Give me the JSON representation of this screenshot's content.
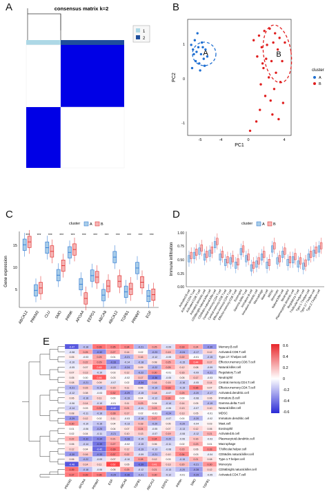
{
  "panels": {
    "a": {
      "letter": "A",
      "title": "consensus matrix k=2",
      "legend": [
        "1",
        "2"
      ],
      "colors": {
        "c1": "#add8e6",
        "c2": "#1f4e9c",
        "dark": "#0000e6"
      }
    },
    "b": {
      "letter": "B",
      "xlabel": "PC1",
      "ylabel": "PC2",
      "legend_title": "cluster",
      "legend": [
        "A",
        "B"
      ],
      "xticks": [
        "-5",
        "-4",
        "0",
        "4"
      ],
      "yticks": [
        "1",
        "0",
        "-1"
      ],
      "ellipse_labels": [
        "A",
        "B"
      ],
      "colors": {
        "A": "#1f6fd1",
        "B": "#e01e1e"
      }
    },
    "c": {
      "letter": "C",
      "legend_title": "cluster",
      "legend": [
        "A",
        "B"
      ],
      "ylabel": "Gene expression",
      "yticks": [
        "5",
        "10",
        "15"
      ],
      "sig": "***"
    },
    "d": {
      "letter": "D",
      "legend_title": "cluster",
      "legend": [
        "A",
        "B"
      ],
      "ylabel": "Immune infiltration",
      "yticks": [
        "0.00",
        "0.25",
        "0.50",
        "0.75",
        "1.00"
      ],
      "sig": "***"
    },
    "e": {
      "letter": "E",
      "colorbar_ticks": [
        "0.6",
        "0.4",
        "0.2",
        "0",
        "-0.2",
        "-0.4",
        "-0.6"
      ]
    }
  },
  "chart_data": [
    {
      "panel": "B",
      "type": "scatter",
      "xlabel": "PC1",
      "ylabel": "PC2",
      "xlim": [
        -5.8,
        5.8
      ],
      "ylim": [
        -1.3,
        1.2
      ],
      "series": [
        {
          "name": "A",
          "points": [
            [
              -5.2,
              0.55
            ],
            [
              -5.0,
              0.75
            ],
            [
              -4.6,
              0.6
            ],
            [
              -4.3,
              0.45
            ],
            [
              -4.9,
              0.3
            ],
            [
              -4.5,
              0.25
            ],
            [
              -4.0,
              0.35
            ],
            [
              -3.8,
              0.55
            ],
            [
              -5.3,
              0.15
            ],
            [
              -4.7,
              0.9
            ],
            [
              -4.2,
              0.7
            ],
            [
              -3.9,
              0.2
            ],
            [
              -5.1,
              0.45
            ],
            [
              -4.4,
              0.1
            ],
            [
              -3.6,
              0.4
            ],
            [
              -4.8,
              0.5
            ],
            [
              -4.1,
              0.6
            ],
            [
              -5.4,
              0.65
            ]
          ]
        },
        {
          "name": "B",
          "points": [
            [
              2.2,
              0.85
            ],
            [
              2.8,
              0.95
            ],
            [
              3.4,
              1.0
            ],
            [
              4.0,
              0.9
            ],
            [
              4.5,
              0.8
            ],
            [
              2.5,
              0.6
            ],
            [
              3.1,
              0.65
            ],
            [
              3.8,
              0.7
            ],
            [
              4.3,
              0.55
            ],
            [
              2.0,
              0.4
            ],
            [
              3.0,
              0.35
            ],
            [
              3.6,
              0.3
            ],
            [
              4.8,
              0.3
            ],
            [
              2.7,
              0.15
            ],
            [
              3.3,
              -0.05
            ],
            [
              4.1,
              0.05
            ],
            [
              2.4,
              -0.2
            ],
            [
              3.9,
              -0.3
            ],
            [
              4.6,
              -0.15
            ],
            [
              2.9,
              -0.45
            ],
            [
              3.5,
              -0.55
            ],
            [
              4.9,
              -0.6
            ],
            [
              2.3,
              -0.75
            ],
            [
              3.7,
              -0.85
            ],
            [
              1.9,
              -1.0
            ],
            [
              1.2,
              -1.2
            ],
            [
              4.4,
              -0.95
            ],
            [
              2.6,
              0.25
            ],
            [
              5.1,
              0.7
            ],
            [
              1.6,
              0.75
            ]
          ]
        }
      ]
    },
    {
      "panel": "C",
      "type": "box",
      "ylabel": "Gene expression",
      "ylim": [
        2,
        18
      ],
      "categories": [
        "ABCA12",
        "PRKM2",
        "CLU",
        "SMO",
        "PRNK",
        "APOA4",
        "EEPD1",
        "ABCA8",
        "ABCA12",
        "TGFB1",
        "PRNMT",
        "EGF"
      ],
      "series": [
        {
          "name": "A",
          "medians": [
            15.2,
            5.6,
            14.6,
            8.8,
            13.6,
            6.9,
            8.7,
            4.6,
            12.6,
            5.3,
            10.3,
            4.4
          ]
        },
        {
          "name": "B",
          "medians": [
            15.8,
            6.1,
            13.8,
            10.8,
            14.2,
            3.9,
            8.4,
            6.5,
            7.5,
            5.9,
            7.3,
            4.7
          ]
        }
      ]
    },
    {
      "panel": "D",
      "type": "box",
      "ylabel": "Immune infiltration",
      "ylim": [
        0,
        1
      ],
      "categories": [
        "Activated.B.cell",
        "Activated.CD4.T.cell",
        "Activated.CD8.T.cell",
        "Activated.dendritic.cell",
        "CD56bright.natural.killer.cell",
        "CD56dim.natural.killer.cell",
        "Central.memory.CD4.T.cell",
        "Central.memory.CD8.T.cell",
        "Effector.memory.CD4.T.cell",
        "Effector.memory.CD8.T.cell",
        "Eosinophil",
        "Gamma.delta.T.cell",
        "Immature.B.cell",
        "Immature.dendritic.cell",
        "Macrophage",
        "Mast.cell",
        "MDSC",
        "Monocyte",
        "Natural.killer.cell",
        "Neutrophil",
        "Plasmacytoid.dendritic.cell",
        "Regulatory.T.cell",
        "T.follicular.helper.cell",
        "Type.1.T.helper.cell",
        "Type.17.T.helper.cell",
        "Type.2.T.helper.cell"
      ],
      "series": [
        {
          "name": "A",
          "medians": [
            0.52,
            0.58,
            0.66,
            0.55,
            0.62,
            0.78,
            0.55,
            0.45,
            0.48,
            0.4,
            0.65,
            0.52,
            0.35,
            0.42,
            0.55,
            0.4,
            0.7,
            0.48,
            0.6,
            0.45,
            0.5,
            0.42,
            0.38,
            0.55,
            0.62,
            0.7
          ]
        },
        {
          "name": "B",
          "medians": [
            0.58,
            0.64,
            0.72,
            0.6,
            0.68,
            0.84,
            0.6,
            0.5,
            0.52,
            0.46,
            0.7,
            0.55,
            0.4,
            0.48,
            0.6,
            0.45,
            0.76,
            0.52,
            0.66,
            0.5,
            0.56,
            0.48,
            0.44,
            0.6,
            0.68,
            0.76
          ]
        }
      ]
    },
    {
      "panel": "E",
      "type": "heatmap",
      "columns": [
        "PRKM2",
        "APOA4",
        "PRNMT",
        "EGF",
        "ABCA8",
        "TGFB1",
        "ABCA12",
        "EEPD1",
        "PRNK",
        "SMO",
        "TGFB1"
      ],
      "rows": [
        "Memory.B.cell",
        "Activated.CD8.T.cell",
        "Type.17.T.helper.cell",
        "Effector.memory.CD8.T.cell",
        "Natural.killer.cell",
        "Regulatory.T.cell",
        "Neutrophil",
        "Central.memory.CD4.T.cell",
        "Effector.memory.CD4.T.cell",
        "Activated.dendritic.cell",
        "Immature.B.cell",
        "Gamma.delta.T.cell",
        "Natural.killer.cell",
        "MDSC",
        "Immature.dendritic.cell",
        "Mast.cell",
        "Eosinophil",
        "Activated.B.cell",
        "Plasmacytoid.dendritic.cell",
        "Macrophage",
        "T.follicular.helper.cell",
        "CD56dim.natural.killer.cell",
        "Type.1.T.helper.cell",
        "Monocyte",
        "CD56bright.natural.killer.cell",
        "Activated.CD4.T.cell"
      ],
      "values": [
        [
          -0.47,
          -0.18,
          0.39,
          0.35,
          0.34,
          -0.21,
          0.25,
          -0.09,
          0.33,
          0.24,
          -0.3
        ],
        [
          -0.08,
          0.25,
          -0.32,
          0.27,
          0.14,
          0.02,
          -0.23,
          0.19,
          -0.24,
          -0.17,
          0.12
        ],
        [
          0.05,
          -0.03,
          0.25,
          0.01,
          -0.21,
          0.16,
          -0.12,
          -0.05,
          0.22,
          -0.01,
          -0.15
        ],
        [
          -0.1,
          0.22,
          0.29,
          -0.33,
          -0.14,
          -0.18,
          0.08,
          0.25,
          -0.15,
          0.44,
          0.17
        ],
        [
          -0.05,
          0.07,
          0.45,
          -0.22,
          -0.24,
          0.09,
          -0.22,
          0.25,
          0.12,
          0.08,
          -0.09
        ],
        [
          0.07,
          0.13,
          -0.1,
          0.03,
          0.12,
          -0.22,
          0.3,
          -0.01,
          0.16,
          -0.09,
          -0.21
        ],
        [
          0.05,
          0.0,
          0.46,
          0.03,
          -0.02,
          0.17,
          -0.36,
          -0.05,
          0.05,
          0.17,
          -0.03
        ],
        [
          0.08,
          -0.21,
          0.09,
          -0.07,
          0.02,
          -0.34,
          0.16,
          0.15,
          -0.16,
          -0.05,
          0.14
        ],
        [
          -0.21,
          0.15,
          -0.19,
          0.15,
          0.11,
          0.06,
          -0.19,
          0.33,
          -0.15,
          0.36,
          0.07
        ],
        [
          -0.12,
          0.08,
          -0.03,
          0.32,
          -0.29,
          -0.15,
          0.18,
          -0.07,
          0.25,
          -0.2,
          -0.17
        ],
        [
          0.06,
          -0.16,
          0.11,
          0.0,
          -0.19,
          0.04,
          -0.12,
          0.3,
          0.0,
          -0.08,
          0.06
        ],
        [
          -0.06,
          0.14,
          -0.1,
          -0.01,
          0.11,
          0.23,
          0.04,
          -0.14,
          0.14,
          0.05,
          -0.19
        ],
        [
          -0.14,
          0.03,
          0.33,
          -0.42,
          0.21,
          -0.11,
          0.23,
          -0.06,
          0.13,
          -0.07,
          0.1
        ],
        [
          0.08,
          -0.11,
          -0.16,
          0.28,
          0.17,
          0.02,
          -0.01,
          -0.24,
          0.13,
          0.05,
          -0.01
        ],
        [
          -0.29,
          0.12,
          0.02,
          0.11,
          -0.03,
          -0.18,
          0.27,
          -0.07,
          0.0,
          -0.2,
          -0.02
        ],
        [
          0.3,
          -0.1,
          -0.16,
          0.04,
          -0.13,
          0.18,
          -0.2,
          0.05,
          -0.2,
          -0.04,
          0.03
        ],
        [
          0.01,
          -0.06,
          -0.25,
          0.04,
          0.07,
          0.24,
          -0.05,
          0.07,
          -0.13,
          0.12,
          0.06
        ],
        [
          0.02,
          0.04,
          -0.11,
          -0.21,
          0.1,
          0.13,
          -0.07,
          0.19,
          -0.08,
          -0.12,
          0.21
        ],
        [
          0.22,
          -0.32,
          -0.34,
          0.21,
          -0.28,
          -0.15,
          0.34,
          -0.2,
          -0.06,
          0.16,
          -0.03
        ],
        [
          0.06,
          -0.14,
          -0.39,
          0.27,
          -0.02,
          -0.15,
          0.06,
          -0.11,
          0.02,
          0.23,
          0.01
        ],
        [
          0.12,
          0.04,
          -0.42,
          0.39,
          0.12,
          -0.19,
          -0.13,
          -0.08,
          0.23,
          0.06,
          0.33
        ],
        [
          -0.3,
          0.16,
          -0.33,
          0.37,
          0.22,
          -0.09,
          -0.21,
          0.1,
          0.34,
          0.03,
          -0.04
        ],
        [
          0.06,
          -0.22,
          -0.09,
          0.07,
          -0.1,
          0.28,
          0.12,
          0.03,
          -0.15,
          0.21,
          0.08
        ],
        [
          -0.48,
          0.14,
          0.11,
          0.52,
          0.05,
          -0.39,
          0.41,
          0.13,
          0.2,
          -0.21,
          0.3
        ],
        [
          0.39,
          -0.18,
          -0.06,
          0.05,
          0.25,
          -0.12,
          0.21,
          -0.13,
          -0.2,
          -0.28,
          0.12
        ],
        [
          0.37,
          0.39,
          0.36,
          -0.29,
          -0.36,
          -0.21,
          0.3,
          -0.12,
          -0.01,
          -0.29,
          -0.05
        ]
      ]
    }
  ]
}
